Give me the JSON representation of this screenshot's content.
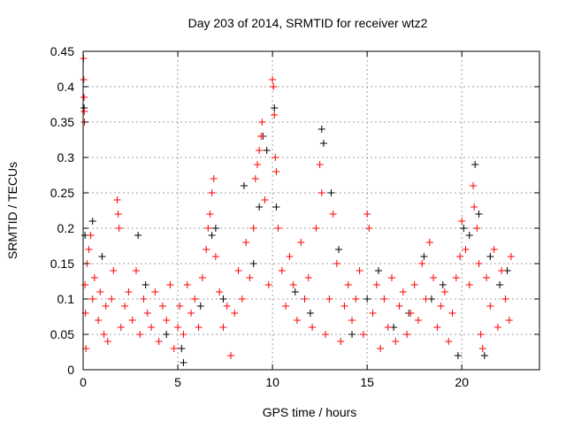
{
  "chart_data": {
    "type": "scatter",
    "title": "Day 203 of 2014, SRMTID for receiver wtz2",
    "xlabel": "GPS time / hours",
    "ylabel": "SRMTID / TECUs",
    "xlim": [
      0,
      24.1
    ],
    "ylim": [
      0,
      0.45
    ],
    "xticks": [
      0,
      5,
      10,
      15,
      20
    ],
    "xtick_labels": [
      "0",
      "5",
      "10",
      "15",
      "20"
    ],
    "yticks": [
      0,
      0.05,
      0.1,
      0.15,
      0.2,
      0.25,
      0.3,
      0.35,
      0.4,
      0.45
    ],
    "ytick_labels": [
      "0",
      "0.05",
      "0.1",
      "0.15",
      "0.2",
      "0.25",
      "0.3",
      "0.35",
      "0.4",
      "0.45"
    ],
    "grid": true,
    "marker": "plus",
    "series": [
      {
        "color": "#000000",
        "points": [
          [
            0.05,
            0.37
          ],
          [
            0.1,
            0.19
          ],
          [
            0.5,
            0.21
          ],
          [
            1.0,
            0.16
          ],
          [
            2.9,
            0.19
          ],
          [
            3.3,
            0.12
          ],
          [
            4.4,
            0.05
          ],
          [
            5.2,
            0.03
          ],
          [
            5.3,
            0.01
          ],
          [
            6.2,
            0.09
          ],
          [
            6.8,
            0.19
          ],
          [
            7.0,
            0.2
          ],
          [
            7.4,
            0.1
          ],
          [
            8.5,
            0.26
          ],
          [
            9.0,
            0.15
          ],
          [
            9.3,
            0.23
          ],
          [
            9.5,
            0.33
          ],
          [
            9.7,
            0.31
          ],
          [
            10.1,
            0.37
          ],
          [
            10.2,
            0.23
          ],
          [
            11.2,
            0.11
          ],
          [
            12.0,
            0.08
          ],
          [
            12.6,
            0.34
          ],
          [
            12.7,
            0.32
          ],
          [
            13.1,
            0.25
          ],
          [
            13.5,
            0.17
          ],
          [
            14.2,
            0.05
          ],
          [
            15.0,
            0.1
          ],
          [
            15.6,
            0.14
          ],
          [
            16.4,
            0.06
          ],
          [
            17.2,
            0.08
          ],
          [
            18.0,
            0.16
          ],
          [
            18.4,
            0.1
          ],
          [
            19.0,
            0.12
          ],
          [
            19.8,
            0.02
          ],
          [
            20.1,
            0.2
          ],
          [
            20.4,
            0.19
          ],
          [
            20.7,
            0.29
          ],
          [
            20.9,
            0.22
          ],
          [
            21.2,
            0.02
          ],
          [
            21.5,
            0.16
          ],
          [
            22.0,
            0.12
          ],
          [
            22.4,
            0.14
          ]
        ]
      },
      {
        "color": "#ff0000",
        "points": [
          [
            0.02,
            0.44
          ],
          [
            0.03,
            0.41
          ],
          [
            0.05,
            0.385
          ],
          [
            0.06,
            0.365
          ],
          [
            0.07,
            0.35
          ],
          [
            0.1,
            0.12
          ],
          [
            0.12,
            0.08
          ],
          [
            0.15,
            0.03
          ],
          [
            0.2,
            0.15
          ],
          [
            0.3,
            0.17
          ],
          [
            0.4,
            0.19
          ],
          [
            0.5,
            0.1
          ],
          [
            0.6,
            0.13
          ],
          [
            0.8,
            0.07
          ],
          [
            0.9,
            0.11
          ],
          [
            1.1,
            0.05
          ],
          [
            1.2,
            0.09
          ],
          [
            1.3,
            0.04
          ],
          [
            1.5,
            0.1
          ],
          [
            1.6,
            0.14
          ],
          [
            1.8,
            0.24
          ],
          [
            1.85,
            0.22
          ],
          [
            1.9,
            0.2
          ],
          [
            2.0,
            0.06
          ],
          [
            2.2,
            0.09
          ],
          [
            2.4,
            0.11
          ],
          [
            2.6,
            0.07
          ],
          [
            2.8,
            0.14
          ],
          [
            3.0,
            0.05
          ],
          [
            3.2,
            0.1
          ],
          [
            3.4,
            0.08
          ],
          [
            3.6,
            0.06
          ],
          [
            3.8,
            0.11
          ],
          [
            4.0,
            0.04
          ],
          [
            4.2,
            0.09
          ],
          [
            4.4,
            0.07
          ],
          [
            4.6,
            0.12
          ],
          [
            4.8,
            0.03
          ],
          [
            5.0,
            0.06
          ],
          [
            5.1,
            0.09
          ],
          [
            5.3,
            0.05
          ],
          [
            5.5,
            0.12
          ],
          [
            5.7,
            0.08
          ],
          [
            5.9,
            0.1
          ],
          [
            6.1,
            0.06
          ],
          [
            6.3,
            0.13
          ],
          [
            6.5,
            0.17
          ],
          [
            6.6,
            0.2
          ],
          [
            6.7,
            0.22
          ],
          [
            6.8,
            0.25
          ],
          [
            6.9,
            0.27
          ],
          [
            7.0,
            0.16
          ],
          [
            7.2,
            0.11
          ],
          [
            7.4,
            0.06
          ],
          [
            7.6,
            0.09
          ],
          [
            7.8,
            0.02
          ],
          [
            8.0,
            0.08
          ],
          [
            8.2,
            0.14
          ],
          [
            8.4,
            0.1
          ],
          [
            8.6,
            0.18
          ],
          [
            8.8,
            0.13
          ],
          [
            9.0,
            0.2
          ],
          [
            9.1,
            0.27
          ],
          [
            9.2,
            0.29
          ],
          [
            9.3,
            0.31
          ],
          [
            9.4,
            0.33
          ],
          [
            9.45,
            0.35
          ],
          [
            9.6,
            0.24
          ],
          [
            9.8,
            0.12
          ],
          [
            10.0,
            0.41
          ],
          [
            10.05,
            0.4
          ],
          [
            10.1,
            0.36
          ],
          [
            10.15,
            0.3
          ],
          [
            10.2,
            0.28
          ],
          [
            10.3,
            0.2
          ],
          [
            10.5,
            0.14
          ],
          [
            10.7,
            0.09
          ],
          [
            10.9,
            0.16
          ],
          [
            11.1,
            0.12
          ],
          [
            11.3,
            0.07
          ],
          [
            11.5,
            0.18
          ],
          [
            11.7,
            0.1
          ],
          [
            11.9,
            0.13
          ],
          [
            12.1,
            0.06
          ],
          [
            12.3,
            0.2
          ],
          [
            12.5,
            0.29
          ],
          [
            12.6,
            0.25
          ],
          [
            12.8,
            0.05
          ],
          [
            13.0,
            0.1
          ],
          [
            13.2,
            0.22
          ],
          [
            13.4,
            0.15
          ],
          [
            13.6,
            0.04
          ],
          [
            13.8,
            0.09
          ],
          [
            14.0,
            0.12
          ],
          [
            14.2,
            0.07
          ],
          [
            14.4,
            0.1
          ],
          [
            14.6,
            0.14
          ],
          [
            14.8,
            0.05
          ],
          [
            15.0,
            0.22
          ],
          [
            15.1,
            0.2
          ],
          [
            15.3,
            0.08
          ],
          [
            15.5,
            0.12
          ],
          [
            15.7,
            0.03
          ],
          [
            15.9,
            0.1
          ],
          [
            16.1,
            0.06
          ],
          [
            16.3,
            0.13
          ],
          [
            16.5,
            0.04
          ],
          [
            16.7,
            0.09
          ],
          [
            16.9,
            0.11
          ],
          [
            17.1,
            0.05
          ],
          [
            17.3,
            0.08
          ],
          [
            17.5,
            0.12
          ],
          [
            17.7,
            0.07
          ],
          [
            17.9,
            0.15
          ],
          [
            18.1,
            0.1
          ],
          [
            18.3,
            0.18
          ],
          [
            18.5,
            0.13
          ],
          [
            18.7,
            0.06
          ],
          [
            18.9,
            0.09
          ],
          [
            19.1,
            0.11
          ],
          [
            19.3,
            0.04
          ],
          [
            19.5,
            0.08
          ],
          [
            19.7,
            0.13
          ],
          [
            19.9,
            0.16
          ],
          [
            20.0,
            0.21
          ],
          [
            20.2,
            0.17
          ],
          [
            20.4,
            0.12
          ],
          [
            20.6,
            0.26
          ],
          [
            20.65,
            0.23
          ],
          [
            20.8,
            0.2
          ],
          [
            20.9,
            0.15
          ],
          [
            21.0,
            0.05
          ],
          [
            21.1,
            0.03
          ],
          [
            21.3,
            0.13
          ],
          [
            21.5,
            0.09
          ],
          [
            21.7,
            0.17
          ],
          [
            21.9,
            0.06
          ],
          [
            22.1,
            0.14
          ],
          [
            22.3,
            0.1
          ],
          [
            22.5,
            0.07
          ],
          [
            22.6,
            0.16
          ]
        ]
      }
    ]
  }
}
